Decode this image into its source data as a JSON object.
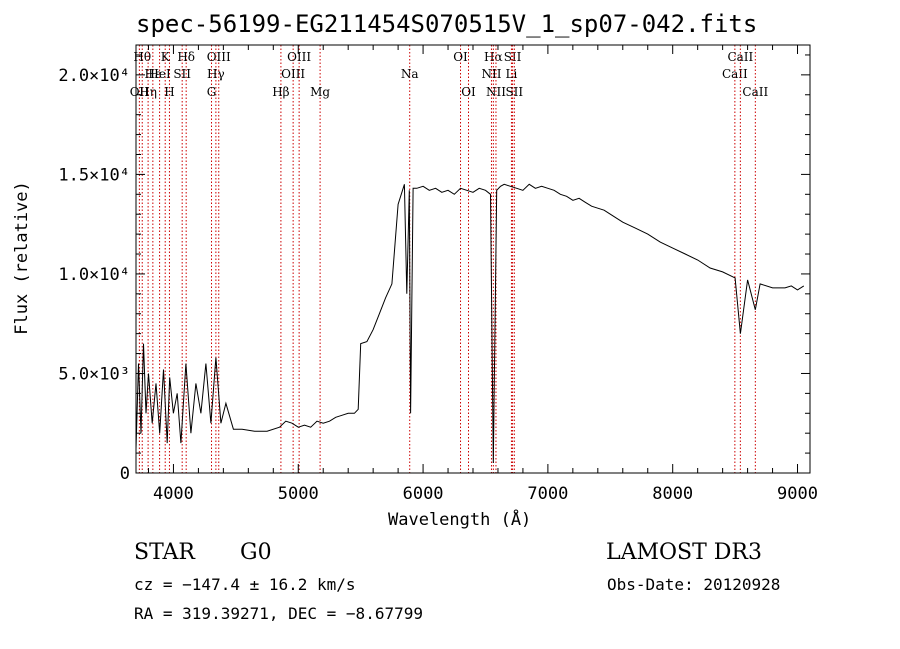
{
  "chart_data": {
    "type": "line",
    "title": "spec-56199-EG211454S070515V_1_sp07-042.fits",
    "xlabel": "Wavelength (Å)",
    "ylabel": "Flux (relative)",
    "xlim": [
      3700,
      9100
    ],
    "ylim": [
      0,
      21500
    ],
    "x_ticks": [
      4000,
      5000,
      6000,
      7000,
      8000,
      9000
    ],
    "y_ticks": [
      {
        "value": 0,
        "label": "0"
      },
      {
        "value": 5000,
        "label": "5.0×10³"
      },
      {
        "value": 10000,
        "label": "1.0×10⁴"
      },
      {
        "value": 15000,
        "label": "1.5×10⁴"
      },
      {
        "value": 20000,
        "label": "2.0×10⁴"
      }
    ],
    "series": [
      {
        "name": "spectrum",
        "x": [
          3700,
          3720,
          3740,
          3760,
          3780,
          3800,
          3830,
          3860,
          3890,
          3920,
          3950,
          3970,
          4000,
          4030,
          4060,
          4100,
          4140,
          4180,
          4220,
          4260,
          4300,
          4340,
          4380,
          4420,
          4480,
          4550,
          4650,
          4750,
          4850,
          4900,
          4950,
          5000,
          5050,
          5100,
          5150,
          5200,
          5250,
          5300,
          5350,
          5400,
          5450,
          5480,
          5500,
          5550,
          5600,
          5650,
          5700,
          5750,
          5800,
          5850,
          5870,
          5890,
          5900,
          5920,
          5950,
          6000,
          6050,
          6100,
          6150,
          6200,
          6250,
          6300,
          6350,
          6400,
          6450,
          6500,
          6540,
          6563,
          6590,
          6620,
          6650,
          6700,
          6750,
          6800,
          6850,
          6900,
          6950,
          7000,
          7050,
          7100,
          7150,
          7200,
          7250,
          7300,
          7350,
          7400,
          7450,
          7500,
          7600,
          7700,
          7800,
          7900,
          8000,
          8100,
          8200,
          8300,
          8400,
          8500,
          8542,
          8600,
          8662,
          8700,
          8800,
          8900,
          8950,
          9000,
          9050
        ],
        "y": [
          1200,
          5500,
          2000,
          6500,
          3000,
          5000,
          2500,
          4500,
          2000,
          5200,
          1500,
          4800,
          3000,
          4000,
          1500,
          5500,
          2000,
          4500,
          3000,
          5500,
          2500,
          5800,
          2500,
          3500,
          2200,
          2200,
          2100,
          2100,
          2300,
          2600,
          2500,
          2300,
          2400,
          2300,
          2600,
          2500,
          2600,
          2800,
          2900,
          3000,
          3000,
          3200,
          6500,
          6600,
          7200,
          8000,
          8800,
          9500,
          13500,
          14500,
          9000,
          14200,
          3000,
          14300,
          14300,
          14400,
          14200,
          14300,
          14100,
          14200,
          14000,
          14300,
          14200,
          14100,
          14300,
          14200,
          14000,
          500,
          14200,
          14400,
          14500,
          14400,
          14300,
          14200,
          14500,
          14300,
          14400,
          14300,
          14200,
          14000,
          13900,
          13700,
          13800,
          13600,
          13400,
          13300,
          13200,
          13000,
          12600,
          12300,
          12000,
          11600,
          11300,
          11000,
          10700,
          10300,
          10100,
          9800,
          7000,
          9700,
          8200,
          9500,
          9300,
          9300,
          9400,
          9200,
          9400
        ]
      }
    ],
    "lines": [
      {
        "label": "OII",
        "x": 3727,
        "row": 3
      },
      {
        "label": "Hθ",
        "x": 3750,
        "row": 1
      },
      {
        "label": "Hη",
        "x": 3797,
        "row": 3
      },
      {
        "label": "Hε",
        "x": 3835,
        "row": 2
      },
      {
        "label": "K",
        "x": 3934,
        "row": 1
      },
      {
        "label": "HeI",
        "x": 3889,
        "row": 2
      },
      {
        "label": "H",
        "x": 3968,
        "row": 3
      },
      {
        "label": "SII",
        "x": 4070,
        "row": 2
      },
      {
        "label": "Hδ",
        "x": 4102,
        "row": 1
      },
      {
        "label": "OIII",
        "x": 4363,
        "row": 1
      },
      {
        "label": "Hγ",
        "x": 4340,
        "row": 2
      },
      {
        "label": "G",
        "x": 4305,
        "row": 3
      },
      {
        "label": "Hβ",
        "x": 4861,
        "row": 3
      },
      {
        "label": "OIII",
        "x": 4959,
        "row": 2
      },
      {
        "label": "OIII",
        "x": 5007,
        "row": 1
      },
      {
        "label": "Mg",
        "x": 5175,
        "row": 3
      },
      {
        "label": "Na",
        "x": 5893,
        "row": 2
      },
      {
        "label": "OI",
        "x": 6300,
        "row": 1
      },
      {
        "label": "OI",
        "x": 6364,
        "row": 3
      },
      {
        "label": "Hα",
        "x": 6563,
        "row": 1
      },
      {
        "label": "NII",
        "x": 6548,
        "row": 2
      },
      {
        "label": "NII",
        "x": 6584,
        "row": 3
      },
      {
        "label": "SII",
        "x": 6717,
        "row": 1
      },
      {
        "label": "Li",
        "x": 6708,
        "row": 2
      },
      {
        "label": "SII",
        "x": 6731,
        "row": 3
      },
      {
        "label": "CaII",
        "x": 8498,
        "row": 2
      },
      {
        "label": "CaII",
        "x": 8542,
        "row": 1
      },
      {
        "label": "CaII",
        "x": 8662,
        "row": 3
      }
    ]
  },
  "info": {
    "object_class": "STAR",
    "subclass": "G0",
    "survey": "LAMOST DR3",
    "cz": "cz = −147.4 ± 16.2 km/s",
    "obs_date": "Obs-Date: 20120928",
    "radec": "RA = 319.39271, DEC =  −8.67799"
  },
  "colors": {
    "spectrum": "#000000",
    "line_marker": "#cc0000",
    "axis": "#000000"
  }
}
